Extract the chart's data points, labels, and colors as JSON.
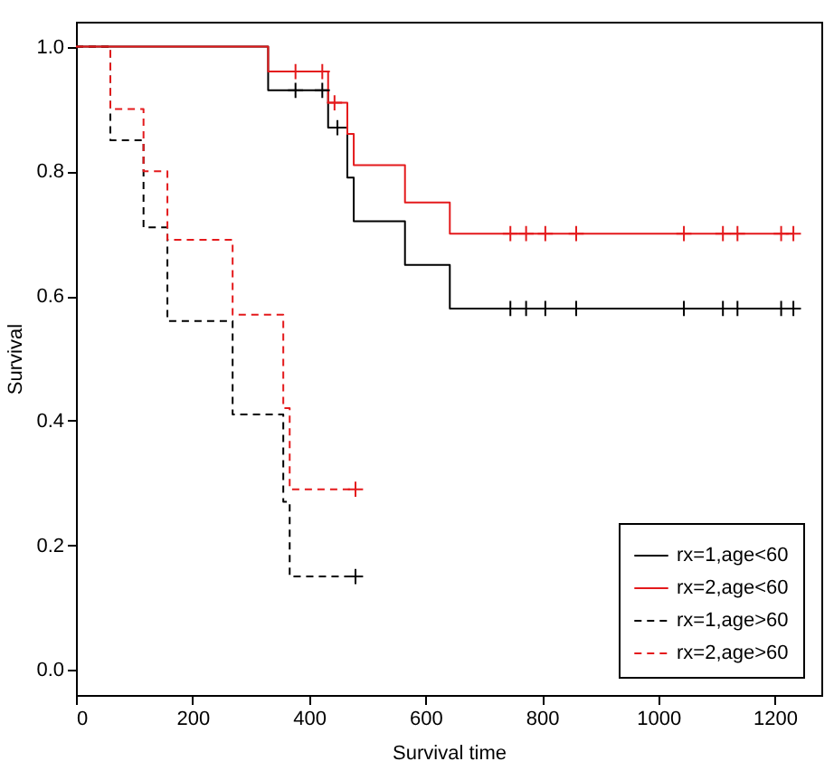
{
  "chart_data": {
    "type": "step",
    "xlabel": "Survival time",
    "ylabel": "Survival",
    "xlim": [
      0,
      1280
    ],
    "ylim": [
      -0.04,
      1.04
    ],
    "xticks": [
      0,
      200,
      400,
      600,
      800,
      1000,
      1200
    ],
    "yticks": [
      {
        "value": 0,
        "label": "0.0"
      },
      {
        "value": 0.2,
        "label": "0.2"
      },
      {
        "value": 0.4,
        "label": "0.4"
      },
      {
        "value": 0.6,
        "label": "0.6"
      },
      {
        "value": 0.8,
        "label": "0.8"
      },
      {
        "value": 1,
        "label": "1.0"
      }
    ],
    "grid": false,
    "legend": "bottom right",
    "series": [
      {
        "name": "rx=1,age<60",
        "line_style": "solid",
        "color": "#000000",
        "x": [
          0,
          330,
          433,
          466,
          477,
          565,
          642,
          1232
        ],
        "values": [
          1,
          0.93,
          0.87,
          0.79,
          0.72,
          0.65,
          0.58,
          0.58
        ]
      },
      {
        "name": "rx=2,age<60",
        "line_style": "solid",
        "color": "#e41a1c",
        "x": [
          0,
          330,
          433,
          466,
          477,
          565,
          642,
          1232
        ],
        "values": [
          1,
          0.96,
          0.91,
          0.86,
          0.81,
          0.75,
          0.7,
          0.7
        ]
      },
      {
        "name": "rx=1,age>60",
        "line_style": "dashed",
        "color": "#000000",
        "x": [
          0,
          59,
          116,
          157,
          269,
          356,
          367,
          480
        ],
        "values": [
          1,
          0.85,
          0.71,
          0.56,
          0.41,
          0.27,
          0.15,
          0.15
        ]
      },
      {
        "name": "rx=2,age>60",
        "line_style": "dashed",
        "color": "#e41a1c",
        "x": [
          0,
          59,
          116,
          157,
          269,
          356,
          367,
          480
        ],
        "values": [
          1,
          0.9,
          0.8,
          0.69,
          0.57,
          0.42,
          0.29,
          0.29
        ]
      },
      {
        "type": "scatter",
        "marker": "cross",
        "color": "#000000",
        "x": [
          377,
          423,
          449,
          746,
          773,
          806,
          859,
          1044,
          1111,
          1136,
          1211,
          1232
        ],
        "values": [
          0.93,
          0.93,
          0.87,
          0.58,
          0.58,
          0.58,
          0.58,
          0.58,
          0.58,
          0.58,
          0.58,
          0.58
        ]
      },
      {
        "type": "scatter",
        "marker": "cross",
        "color": "#e41a1c",
        "x": [
          377,
          423,
          444,
          746,
          773,
          806,
          859,
          1044,
          1111,
          1136,
          1211,
          1232
        ],
        "values": [
          0.96,
          0.96,
          0.91,
          0.7,
          0.7,
          0.7,
          0.7,
          0.7,
          0.7,
          0.7,
          0.7,
          0.7
        ]
      },
      {
        "type": "scatter",
        "marker": "cross",
        "color": "#000000",
        "x": [
          480
        ],
        "values": [
          0.15
        ]
      },
      {
        "type": "scatter",
        "marker": "cross",
        "color": "#e41a1c",
        "x": [
          480
        ],
        "values": [
          0.29
        ]
      }
    ]
  }
}
